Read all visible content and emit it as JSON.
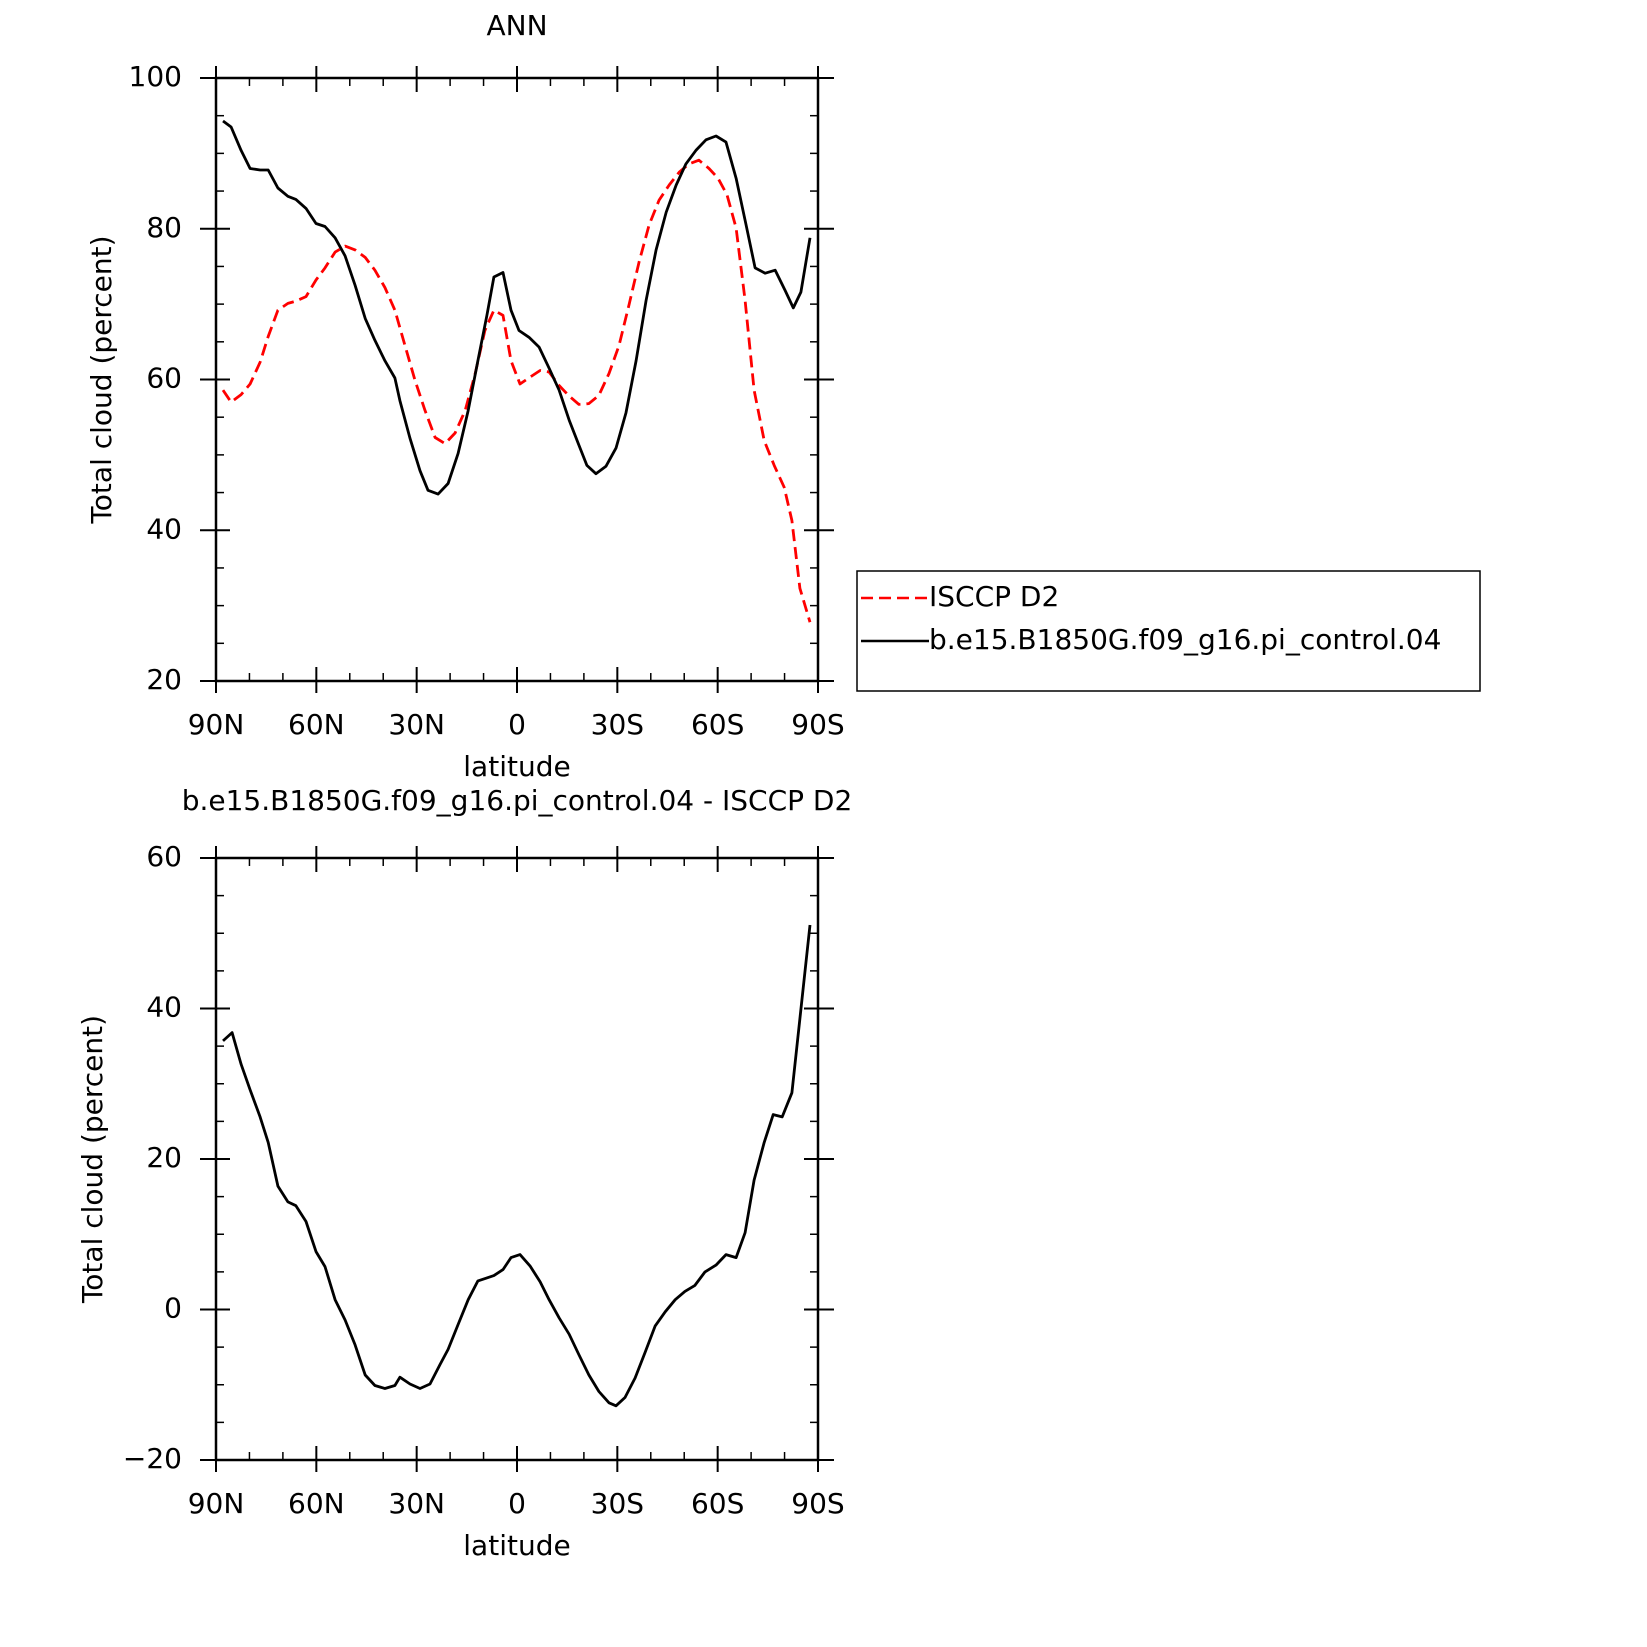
{
  "chart_data": [
    {
      "type": "line",
      "title": "ANN",
      "x_label": "latitude",
      "y_label": "Total cloud (percent)",
      "xlim": [
        90,
        -90
      ],
      "xticks": [
        {
          "value": 90,
          "label": "90N"
        },
        {
          "value": 60,
          "label": "60N"
        },
        {
          "value": 30,
          "label": "30N"
        },
        0,
        {
          "value": -30,
          "label": "30S"
        },
        {
          "value": -60,
          "label": "60S"
        },
        {
          "value": -90,
          "label": "90S"
        }
      ],
      "ylim": [
        20,
        100
      ],
      "yticks": [
        20,
        40,
        60,
        80,
        100
      ],
      "legend": "right",
      "series": [
        {
          "name": "ISCCP D2",
          "color": "#ff0000",
          "style": "dashed",
          "x": [
            87.9,
            85.5,
            82.5,
            79.8,
            76.8,
            74.4,
            71.5,
            68.5,
            66.1,
            63.1,
            60.1,
            57.4,
            54.4,
            51.4,
            48.4,
            45.4,
            42.5,
            39.5,
            36.5,
            33.5,
            30.5,
            27.5,
            24.5,
            21.5,
            18.5,
            15.5,
            12.5,
            9.6,
            6.9,
            4.2,
            1.8,
            -0.9,
            -3.9,
            -6.9,
            -9.6,
            -12.6,
            -15.6,
            -18.5,
            -21.5,
            -24.5,
            -27.5,
            -30.5,
            -33.5,
            -36.5,
            -39.5,
            -42.5,
            -45.5,
            -48.5,
            -51.4,
            -54.4,
            -57.4,
            -60.1,
            -62.8,
            -65.5,
            -68.2,
            -70.9,
            -73.9,
            -76.9,
            -79.9,
            -82.2,
            -84.6,
            -87.6
          ],
          "values": [
            58.6,
            57.0,
            58.0,
            59.4,
            62.3,
            65.7,
            69.2,
            70.1,
            70.4,
            71.0,
            73.2,
            74.8,
            76.9,
            77.7,
            77.2,
            76.2,
            74.5,
            72.2,
            69.2,
            64.5,
            59.9,
            55.9,
            52.3,
            51.5,
            52.9,
            55.9,
            60.8,
            66.5,
            69.2,
            68.5,
            62.5,
            59.4,
            60.3,
            61.2,
            61.0,
            59.2,
            57.8,
            56.7,
            56.8,
            57.9,
            60.8,
            64.5,
            69.9,
            75.6,
            80.5,
            83.8,
            85.8,
            87.5,
            88.6,
            89.1,
            88.0,
            86.7,
            84.5,
            80.1,
            70.5,
            58.6,
            51.9,
            48.6,
            45.7,
            41.3,
            32.3,
            27.8
          ]
        },
        {
          "name": "b.e15.B1850G.f09_g16.pi_control.04",
          "color": "#000000",
          "style": "solid",
          "x": [
            87.9,
            85.5,
            82.5,
            79.8,
            76.8,
            74.4,
            71.5,
            68.5,
            66.1,
            63.1,
            60.1,
            57.4,
            54.4,
            51.4,
            48.4,
            45.4,
            42.5,
            39.5,
            36.5,
            35.0,
            32.0,
            29.0,
            26.6,
            23.6,
            20.6,
            17.6,
            14.6,
            11.7,
            9.0,
            6.9,
            4.2,
            1.8,
            -0.6,
            -3.6,
            -6.6,
            -9.6,
            -12.6,
            -15.6,
            -18.5,
            -20.9,
            -23.6,
            -26.6,
            -29.6,
            -32.6,
            -35.6,
            -38.6,
            -41.6,
            -44.6,
            -47.6,
            -50.5,
            -53.5,
            -56.5,
            -59.5,
            -62.5,
            -65.5,
            -68.5,
            -71.2,
            -74.2,
            -77.2,
            -80.2,
            -82.6,
            -84.9,
            -87.6
          ],
          "values": [
            94.3,
            93.5,
            90.4,
            88.0,
            87.8,
            87.8,
            85.4,
            84.3,
            83.9,
            82.7,
            80.7,
            80.3,
            78.8,
            76.4,
            72.5,
            68.1,
            65.2,
            62.5,
            60.2,
            57.2,
            52.2,
            47.9,
            45.3,
            44.8,
            46.2,
            50.2,
            55.9,
            62.5,
            68.5,
            73.6,
            74.2,
            69.2,
            66.5,
            65.6,
            64.3,
            61.5,
            58.6,
            54.6,
            51.3,
            48.6,
            47.5,
            48.5,
            50.9,
            55.6,
            62.5,
            70.5,
            77.2,
            82.2,
            85.8,
            88.6,
            90.4,
            91.8,
            92.3,
            91.5,
            86.7,
            80.5,
            74.8,
            74.1,
            74.5,
            71.8,
            69.5,
            71.6,
            78.8
          ]
        }
      ]
    },
    {
      "type": "line",
      "title": "b.e15.B1850G.f09_g16.pi_control.04 - ISCCP D2",
      "x_label": "latitude",
      "y_label": "Total cloud (percent)",
      "xlim": [
        90,
        -90
      ],
      "xticks": [
        {
          "value": 90,
          "label": "90N"
        },
        {
          "value": 60,
          "label": "60N"
        },
        {
          "value": 30,
          "label": "30N"
        },
        0,
        {
          "value": -30,
          "label": "30S"
        },
        {
          "value": -60,
          "label": "60S"
        },
        {
          "value": -90,
          "label": "90S"
        }
      ],
      "ylim": [
        -20,
        60
      ],
      "yticks": [
        {
          "value": -20,
          "label": "−20"
        },
        0,
        20,
        40,
        60
      ],
      "series": [
        {
          "color": "#000000",
          "style": "solid",
          "x": [
            87.9,
            85.2,
            82.5,
            79.8,
            76.8,
            74.4,
            71.5,
            68.5,
            66.1,
            63.1,
            60.1,
            57.4,
            54.4,
            51.4,
            48.4,
            45.4,
            42.5,
            39.5,
            36.5,
            35.0,
            32.0,
            29.0,
            26.0,
            23.0,
            20.6,
            17.6,
            14.6,
            11.7,
            9.0,
            6.9,
            4.2,
            1.8,
            -0.9,
            -3.9,
            -6.9,
            -9.6,
            -12.6,
            -15.6,
            -18.5,
            -21.5,
            -24.5,
            -27.5,
            -29.6,
            -32.3,
            -35.3,
            -38.3,
            -41.3,
            -44.3,
            -47.3,
            -50.2,
            -53.2,
            -56.2,
            -59.5,
            -62.5,
            -65.5,
            -68.2,
            -70.9,
            -73.9,
            -76.6,
            -79.3,
            -82.2,
            -87.6
          ],
          "values": [
            35.7,
            36.8,
            32.6,
            29.2,
            25.6,
            22.2,
            16.4,
            14.3,
            13.8,
            11.7,
            7.7,
            5.7,
            1.3,
            -1.4,
            -4.7,
            -8.7,
            -10.1,
            -10.5,
            -10.1,
            -9.0,
            -9.9,
            -10.5,
            -9.9,
            -7.3,
            -5.3,
            -2.0,
            1.3,
            3.8,
            4.2,
            4.5,
            5.3,
            6.9,
            7.3,
            5.8,
            3.7,
            1.3,
            -1.1,
            -3.3,
            -6.0,
            -8.7,
            -10.9,
            -12.4,
            -12.8,
            -11.7,
            -9.1,
            -5.7,
            -2.2,
            -0.3,
            1.3,
            2.4,
            3.2,
            5.0,
            5.9,
            7.3,
            6.9,
            10.2,
            17.2,
            22.2,
            25.9,
            25.6,
            28.8,
            51.1
          ]
        }
      ]
    }
  ]
}
